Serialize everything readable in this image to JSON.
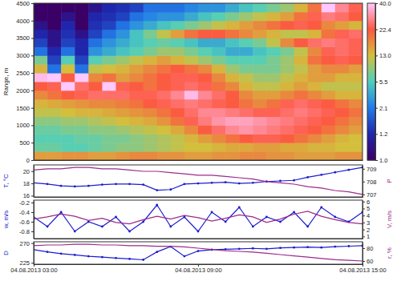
{
  "chart_data": [
    {
      "type": "heatmap",
      "y_label": "Range, m",
      "tick_labels": "y",
      "x_bins": [
        3,
        3.5,
        4,
        4.5,
        5,
        5.5,
        6,
        6.5,
        7,
        7.5,
        8,
        8.5,
        9,
        9.5,
        10,
        10.5,
        11,
        11.5,
        12,
        12.5,
        13,
        13.5,
        14,
        14.5,
        15
      ],
      "y_bins": [
        0,
        250,
        500,
        750,
        1000,
        1250,
        1500,
        1750,
        2000,
        2250,
        2500,
        2750,
        3000,
        3250,
        3500,
        3750,
        4000,
        4250,
        4500
      ],
      "xlim": [
        3,
        15
      ],
      "ylim": [
        0,
        4500
      ],
      "yticks": [
        0,
        500,
        1000,
        1500,
        2000,
        2500,
        3000,
        3500,
        4000,
        4500
      ],
      "colorbar_lim": [
        1,
        40
      ],
      "colorbar_ticks": [
        {
          "value": 1,
          "label": "1.0"
        },
        1.2,
        2.1,
        5.5,
        {
          "value": 13,
          "label": "13.0"
        },
        22.4,
        {
          "value": 40,
          "label": "40.0"
        }
      ],
      "z": [
        [
          16,
          16,
          17,
          17,
          16,
          16,
          17,
          18,
          18,
          17,
          17,
          16,
          16,
          17,
          17,
          18,
          18,
          17,
          17,
          16,
          16,
          16,
          17,
          17
        ],
        [
          7,
          7,
          6,
          6,
          7,
          8,
          9,
          9,
          10,
          11,
          12,
          13,
          13,
          14,
          15,
          15,
          16,
          16,
          15,
          15,
          14,
          14,
          13,
          13
        ],
        [
          6,
          6,
          6,
          7,
          7,
          8,
          8,
          9,
          10,
          11,
          12,
          14,
          16,
          18,
          20,
          22,
          24,
          24,
          22,
          20,
          18,
          16,
          14,
          13
        ],
        [
          7,
          7,
          8,
          8,
          9,
          9,
          10,
          11,
          12,
          13,
          15,
          18,
          22,
          26,
          30,
          32,
          30,
          28,
          26,
          24,
          22,
          20,
          18,
          16
        ],
        [
          9,
          9,
          10,
          10,
          11,
          12,
          13,
          14,
          15,
          17,
          20,
          24,
          28,
          32,
          34,
          34,
          32,
          30,
          28,
          26,
          24,
          22,
          20,
          18
        ],
        [
          12,
          12,
          13,
          14,
          14,
          15,
          16,
          17,
          18,
          20,
          22,
          26,
          30,
          30,
          28,
          26,
          24,
          24,
          26,
          28,
          26,
          24,
          22,
          20
        ],
        [
          14,
          15,
          16,
          17,
          18,
          18,
          19,
          20,
          22,
          24,
          26,
          28,
          26,
          24,
          22,
          20,
          18,
          20,
          24,
          26,
          24,
          22,
          20,
          18
        ],
        [
          18,
          20,
          22,
          24,
          26,
          26,
          26,
          24,
          24,
          26,
          30,
          38,
          30,
          26,
          22,
          18,
          16,
          16,
          18,
          20,
          18,
          16,
          14,
          14
        ],
        [
          22,
          24,
          40,
          26,
          22,
          40,
          24,
          22,
          20,
          22,
          24,
          26,
          24,
          20,
          18,
          14,
          12,
          12,
          14,
          16,
          14,
          12,
          12,
          12
        ],
        [
          38,
          40,
          22,
          40,
          18,
          20,
          16,
          18,
          20,
          22,
          24,
          24,
          22,
          18,
          14,
          12,
          10,
          10,
          12,
          14,
          16,
          16,
          14,
          14
        ],
        [
          14,
          2,
          13,
          2,
          12,
          13,
          14,
          16,
          18,
          20,
          22,
          20,
          18,
          14,
          10,
          8,
          8,
          8,
          10,
          12,
          16,
          18,
          18,
          16
        ],
        [
          8,
          1.5,
          6,
          1.5,
          6,
          8,
          10,
          12,
          14,
          16,
          14,
          12,
          10,
          8,
          6,
          6,
          6,
          8,
          10,
          14,
          20,
          22,
          24,
          22
        ],
        [
          2,
          1.2,
          2,
          1.2,
          3,
          4,
          5,
          6,
          8,
          10,
          10,
          8,
          6,
          5,
          4,
          4,
          5,
          6,
          8,
          12,
          18,
          24,
          26,
          24
        ],
        [
          1.5,
          1.1,
          1.5,
          1.2,
          2,
          3,
          4,
          5,
          6,
          7,
          6,
          5,
          4,
          4,
          5,
          6,
          8,
          12,
          18,
          22,
          26,
          28,
          26,
          24
        ],
        [
          1.2,
          1.1,
          1.3,
          1.1,
          1.5,
          2,
          3,
          5,
          8,
          12,
          16,
          20,
          22,
          22,
          20,
          18,
          16,
          14,
          12,
          12,
          14,
          20,
          24,
          26
        ],
        [
          1.1,
          1,
          1.2,
          1,
          1.3,
          1.5,
          2,
          3,
          4,
          5,
          6,
          8,
          10,
          12,
          14,
          16,
          18,
          20,
          22,
          24,
          22,
          18,
          16,
          14
        ],
        [
          1,
          1,
          1.1,
          1,
          1.2,
          1.3,
          1.5,
          2,
          2.5,
          3,
          3,
          4,
          5,
          6,
          8,
          10,
          12,
          14,
          16,
          20,
          24,
          28,
          26,
          22
        ],
        [
          1,
          1,
          1,
          1,
          1.1,
          1.2,
          1.3,
          1.5,
          2,
          2,
          2,
          2.5,
          3,
          3,
          4,
          5,
          6,
          8,
          10,
          14,
          20,
          40,
          30,
          24
        ]
      ]
    },
    {
      "type": "line",
      "tick_labels": "y",
      "x": [
        3,
        3.5,
        4,
        4.5,
        5,
        5.5,
        6,
        6.5,
        7,
        7.5,
        8,
        8.5,
        9,
        9.5,
        10,
        10.5,
        11,
        11.5,
        12,
        12.5,
        13,
        13.5,
        14,
        14.5,
        15
      ],
      "xlim": [
        3,
        15
      ],
      "ylim": [
        15.8,
        21
      ],
      "yticks": [
        16,
        18,
        20
      ],
      "y2lim": [
        706.8,
        709.3
      ],
      "y2ticks": [
        707,
        708,
        709
      ],
      "series": [
        {
          "name": "T, °C",
          "color": "#1c1cd0",
          "marker": "circle",
          "values": [
            18.1,
            17.9,
            17.6,
            17.5,
            17.6,
            17.8,
            17.9,
            17.9,
            17.8,
            16.9,
            17.0,
            17.9,
            18.0,
            18.1,
            18.2,
            18.0,
            18.1,
            18.3,
            18.4,
            18.5,
            19.0,
            19.4,
            19.8,
            20.2,
            20.6
          ]
        },
        {
          "name": "P",
          "color": "#9b2a8c",
          "axis": "y2",
          "values": [
            708.9,
            709.0,
            709.0,
            709.1,
            709.1,
            709.0,
            709.0,
            708.9,
            708.8,
            708.8,
            708.7,
            708.6,
            708.5,
            708.5,
            708.4,
            708.3,
            708.2,
            708.0,
            707.9,
            707.8,
            707.6,
            707.5,
            707.3,
            707.2,
            707.0
          ]
        }
      ]
    },
    {
      "type": "line",
      "tick_labels": "y",
      "x": [
        3,
        3.5,
        4,
        4.5,
        5,
        5.5,
        6,
        6.5,
        7,
        7.5,
        8,
        8.5,
        9,
        9.5,
        10,
        10.5,
        11,
        11.5,
        12,
        12.5,
        13,
        13.5,
        14,
        14.5,
        15
      ],
      "xlim": [
        3,
        15
      ],
      "ylim": [
        -0.95,
        -0.15
      ],
      "yticks": [
        -0.2,
        -0.4,
        -0.6,
        -0.8
      ],
      "y2lim": [
        0.7,
        6.2
      ],
      "y2ticks": [
        1,
        2,
        3,
        4,
        5,
        6
      ],
      "series": [
        {
          "name": "w, m/s",
          "color": "#1c1cd0",
          "marker": "circle",
          "values": [
            -0.5,
            -0.7,
            -0.4,
            -0.8,
            -0.6,
            -0.7,
            -0.5,
            -0.8,
            -0.6,
            -0.25,
            -0.7,
            -0.5,
            -0.8,
            -0.4,
            -0.6,
            -0.3,
            -0.7,
            -0.5,
            -0.6,
            -0.4,
            -0.7,
            -0.3,
            -0.5,
            -0.6,
            -0.4
          ]
        },
        {
          "name": "V, m/s",
          "color": "#9b2a8c",
          "axis": "y2",
          "values": [
            3.5,
            3.8,
            4.2,
            3.9,
            3.3,
            3.6,
            3.0,
            2.8,
            3.4,
            3.9,
            3.5,
            4.0,
            3.7,
            3.2,
            3.6,
            4.1,
            3.8,
            3.0,
            3.5,
            4.2,
            4.6,
            3.9,
            3.4,
            3.0,
            2.8
          ]
        }
      ]
    },
    {
      "type": "line",
      "x": [
        3,
        3.5,
        4,
        4.5,
        5,
        5.5,
        6,
        6.5,
        7,
        7.5,
        8,
        8.5,
        9,
        9.5,
        10,
        10.5,
        11,
        11.5,
        12,
        12.5,
        13,
        13.5,
        14,
        14.5,
        15
      ],
      "xlim": [
        3,
        15
      ],
      "xticks": [
        {
          "value": 3,
          "label": "04.08.2013 03:00"
        },
        {
          "value": 9,
          "label": "04.08.2013 09:00"
        },
        {
          "value": 15,
          "label": "04.08.2013 15:00"
        }
      ],
      "ylim": [
        222,
        273
      ],
      "yticks": [
        225,
        270
      ],
      "y2lim": [
        55,
        90
      ],
      "y2ticks": [
        60,
        80
      ],
      "series": [
        {
          "name": "D",
          "color": "#1c1cd0",
          "marker": "circle",
          "values": [
            255,
            250,
            246,
            243,
            240,
            238,
            236,
            234,
            232,
            250,
            262,
            240,
            252,
            255,
            256,
            257,
            258,
            257,
            259,
            260,
            261,
            260,
            262,
            263,
            264
          ]
        },
        {
          "name": "r, %",
          "color": "#9b2a8c",
          "axis": "y2",
          "values": [
            84,
            85,
            85,
            86,
            86,
            85,
            85,
            84,
            84,
            83,
            83,
            82,
            80,
            78,
            76,
            75,
            74,
            72,
            70,
            68,
            66,
            64,
            62,
            61,
            60
          ]
        }
      ]
    }
  ]
}
